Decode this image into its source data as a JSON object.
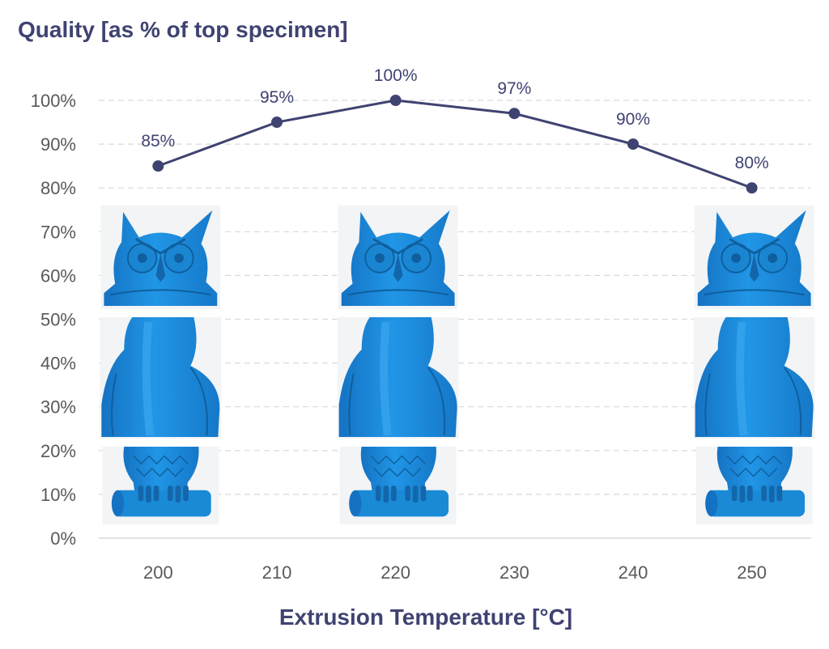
{
  "chart_data": {
    "type": "line",
    "title": "Quality [as % of top specimen]",
    "xlabel": "Extrusion Temperature [°C]",
    "ylabel": "",
    "categories": [
      "200",
      "210",
      "220",
      "230",
      "240",
      "250"
    ],
    "series": [
      {
        "values": [
          85,
          95,
          100,
          97,
          90,
          80
        ]
      }
    ],
    "data_labels": [
      "85%",
      "95%",
      "100%",
      "97%",
      "90%",
      "80%"
    ],
    "y_ticks": [
      "0%",
      "10%",
      "20%",
      "30%",
      "40%",
      "50%",
      "60%",
      "70%",
      "80%",
      "90%",
      "100%"
    ],
    "ylim": [
      0,
      100
    ],
    "grid": true,
    "legend": "none",
    "series_color": "#3f4371",
    "specimen_photos_at": [
      "200",
      "220",
      "250"
    ],
    "specimen_color": "#1a8ad6"
  }
}
